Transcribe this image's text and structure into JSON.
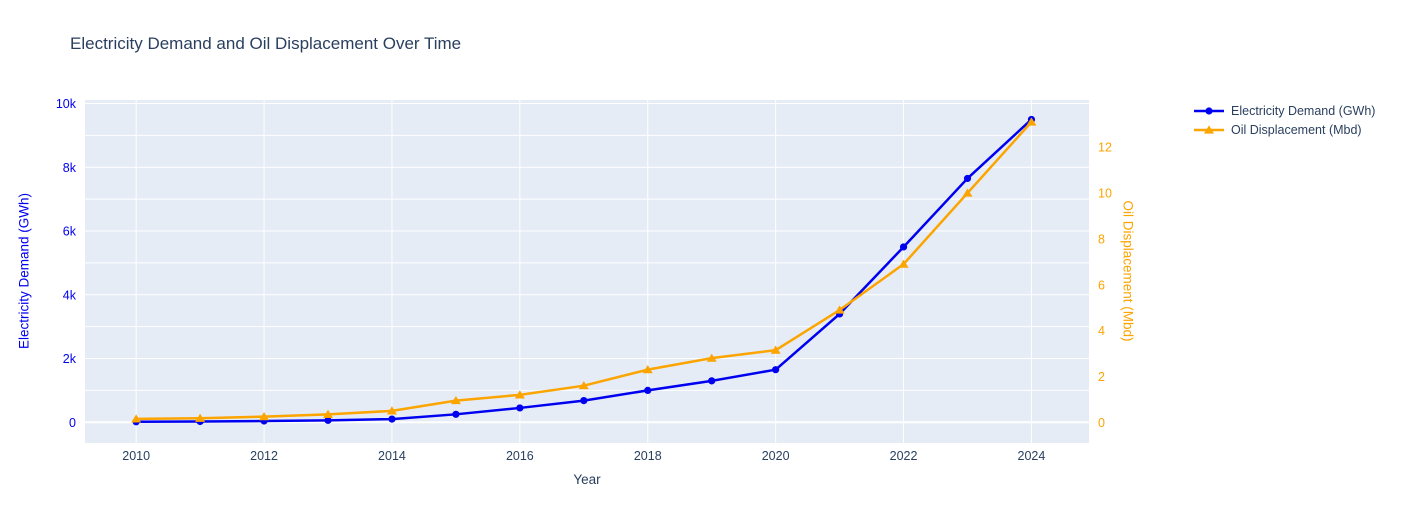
{
  "page": {
    "title": "Electricity Demand and Oil Displacement Over Time"
  },
  "chart_data": {
    "type": "line",
    "title": "Electricity Demand and Oil Displacement Over Time",
    "xlabel": "Year",
    "ylabel_left": "Electricity Demand (GWh)",
    "ylabel_right": "Oil Displacement (Mbd)",
    "x": [
      2010,
      2011,
      2012,
      2013,
      2014,
      2015,
      2016,
      2017,
      2018,
      2019,
      2020,
      2021,
      2022,
      2023,
      2024
    ],
    "series": [
      {
        "name": "Electricity Demand (GWh)",
        "axis": "left",
        "color": "#0000f0",
        "marker": "circle",
        "values": [
          15,
          25,
          40,
          60,
          100,
          250,
          450,
          680,
          1000,
          1300,
          1650,
          3400,
          5500,
          7650,
          9500
        ]
      },
      {
        "name": "Oil Displacement (Mbd)",
        "axis": "right",
        "color": "#fca400",
        "marker": "triangle-up",
        "values": [
          0.15,
          0.18,
          0.25,
          0.35,
          0.5,
          0.95,
          1.2,
          1.6,
          2.3,
          2.8,
          3.15,
          4.9,
          6.9,
          10.0,
          13.1
        ]
      }
    ],
    "x_ticks": {
      "values": [
        2010,
        2012,
        2014,
        2016,
        2018,
        2020,
        2022,
        2024
      ],
      "labels": [
        "2010",
        "2012",
        "2014",
        "2016",
        "2018",
        "2020",
        "2022",
        "2024"
      ]
    },
    "y_left_ticks": {
      "values": [
        0,
        2000,
        4000,
        6000,
        8000,
        10000
      ],
      "labels": [
        "0",
        "2k",
        "4k",
        "6k",
        "8k",
        "10k"
      ],
      "minor_step": 1000
    },
    "y_right_ticks": {
      "values": [
        0,
        2,
        4,
        6,
        8,
        10,
        12
      ],
      "labels": [
        "0",
        "2",
        "4",
        "6",
        "8",
        "10",
        "12"
      ]
    },
    "x_range": [
      2009.2,
      2024.9
    ],
    "y_left_range": [
      -650,
      10110
    ],
    "y_right_range": [
      -0.9,
      14.06
    ],
    "grid": true,
    "legend_position": "top-right-outside",
    "colors": {
      "plot_bg": "#e5ecf6",
      "grid": "#ffffff",
      "zeroline": "#ffffff",
      "text": "#2a3f5f",
      "left_axis": "#0000f0",
      "right_axis": "#fca400"
    }
  }
}
